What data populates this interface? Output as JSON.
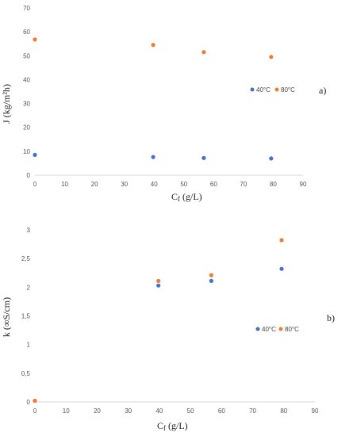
{
  "chart_data": [
    {
      "type": "scatter",
      "panel_label": "a)",
      "xlabel": "Cf (g/L)",
      "xlabel_main": "C",
      "xlabel_sub": "f",
      "xlabel_rest": " (g/L)",
      "ylabel": "J (kg/m²h)",
      "xlim": [
        0,
        90
      ],
      "ylim": [
        0,
        70
      ],
      "xticks": [
        0,
        10,
        20,
        30,
        40,
        50,
        60,
        70,
        80,
        90
      ],
      "yticks": [
        0,
        10,
        20,
        30,
        40,
        50,
        60,
        70
      ],
      "ytick_labels": [
        "0",
        "10",
        "20",
        "30",
        "40",
        "50",
        "60",
        "70"
      ],
      "grid": false,
      "legend_placement": "right",
      "series": [
        {
          "name": "40°C",
          "color": "#4472c4",
          "points": [
            [
              0,
              8.5
            ],
            [
              39.7,
              7.6
            ],
            [
              56.7,
              7.2
            ],
            [
              79.3,
              7.0
            ]
          ]
        },
        {
          "name": "80°C",
          "color": "#ed7d31",
          "points": [
            [
              0,
              56.8
            ],
            [
              39.7,
              54.5
            ],
            [
              56.7,
              51.5
            ],
            [
              79.3,
              49.5
            ]
          ]
        }
      ]
    },
    {
      "type": "scatter",
      "panel_label": "b)",
      "xlabel": "Cf (g/L)",
      "xlabel_main": "C",
      "xlabel_sub": "f",
      "xlabel_rest": " (g/L)",
      "ylabel": "k (∞S/cm)",
      "xlim": [
        0,
        90
      ],
      "ylim": [
        0,
        3
      ],
      "xticks": [
        0,
        10,
        20,
        30,
        40,
        50,
        60,
        70,
        80,
        90
      ],
      "yticks": [
        0,
        0.5,
        1,
        1.5,
        2,
        2.5,
        3
      ],
      "ytick_labels": [
        "0",
        "0,5",
        "1",
        "1,5",
        "2",
        "2,5",
        "3"
      ],
      "grid": false,
      "legend_placement": "right",
      "series": [
        {
          "name": "40°C",
          "color": "#4472c4",
          "points": [
            [
              0,
              0.02
            ],
            [
              39.7,
              2.03
            ],
            [
              56.7,
              2.11
            ],
            [
              79.3,
              2.32
            ]
          ]
        },
        {
          "name": "80°C",
          "color": "#ed7d31",
          "points": [
            [
              0,
              0.02
            ],
            [
              39.7,
              2.11
            ],
            [
              56.7,
              2.21
            ],
            [
              79.3,
              2.82
            ]
          ]
        }
      ]
    }
  ]
}
